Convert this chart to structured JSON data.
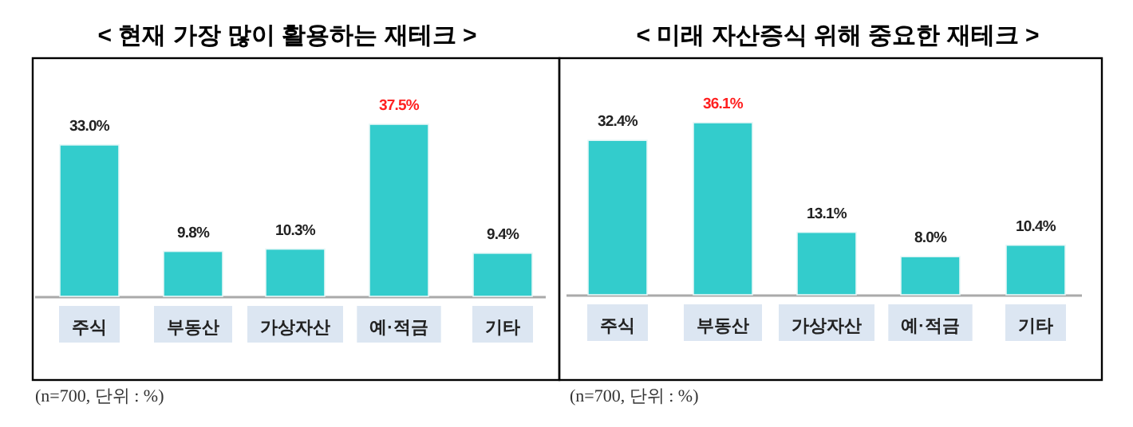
{
  "chart_data": [
    {
      "type": "bar",
      "title": "< 현재 가장 많이 활용하는 재테크 >",
      "categories": [
        "주식",
        "부동산",
        "가상자산",
        "예·적금",
        "기타"
      ],
      "values": [
        33.0,
        9.8,
        10.3,
        37.5,
        9.4
      ],
      "color": "#33cccc",
      "value_labels": [
        "33.0%",
        "9.8%",
        "10.3%",
        "37.5%",
        "9.4%"
      ],
      "annotations": [
        "(n=700, 단위 : %)"
      ]
    },
    {
      "type": "bar",
      "title": "< 미래 자산증식 위해 중요한 재테크 >",
      "categories": [
        "주식",
        "부동산",
        "가상자산",
        "예·적금",
        "기타"
      ],
      "values": [
        32.4,
        36.1,
        13.1,
        8.0,
        10.4
      ],
      "color": "#33cccc",
      "value_labels": [
        "32.4%",
        "36.1%",
        "13.1%",
        "8.0%",
        "10.4%"
      ],
      "annotations": [
        "(n=700, 단위 : %)"
      ]
    }
  ]
}
